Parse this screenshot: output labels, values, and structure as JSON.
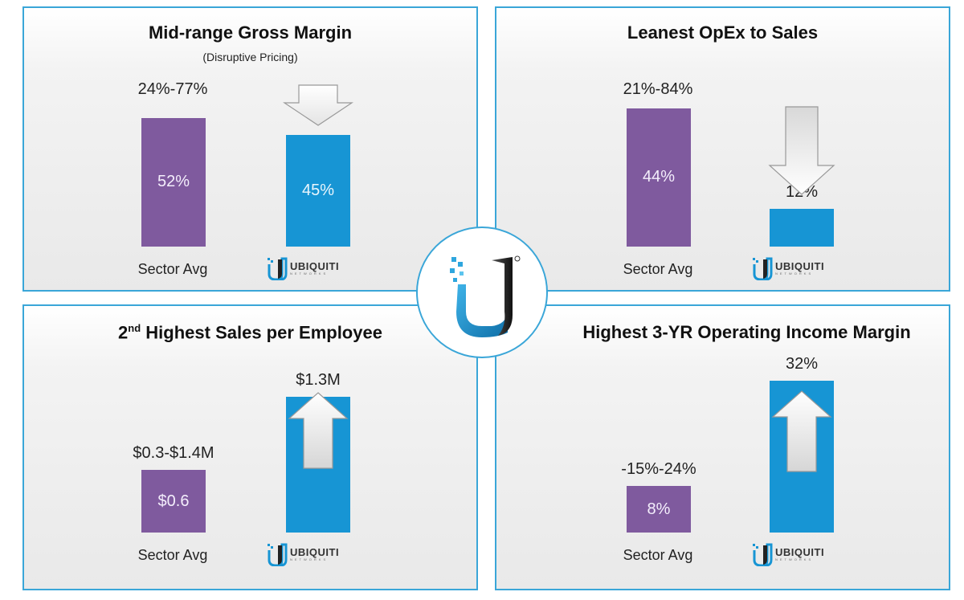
{
  "brand": {
    "logo_text": "UBIQUITI",
    "logo_subtext": "NETWORKS",
    "colors": {
      "sector": "#7f5a9e",
      "ubiquiti": "#1795d4",
      "border": "#3aa6d8"
    }
  },
  "panels": [
    {
      "title": "Mid-range Gross Margin",
      "subtitle": "(Disruptive Pricing)",
      "range_label": "24%-77%",
      "sector_value_label": "52%",
      "ubnt_value_label": "45%",
      "sector_category": "Sector Avg",
      "arrow": "down-arrow-icon"
    },
    {
      "title": "Leanest OpEx to Sales",
      "range_label": "21%-84%",
      "sector_value_label": "44%",
      "ubnt_value_label": "12%",
      "sector_category": "Sector Avg",
      "arrow": "down-arrow-icon"
    },
    {
      "title_prefix": "2",
      "title_sup": "nd",
      "title_rest": " Highest Sales per Employee",
      "range_label": "$0.3-$1.4M",
      "sector_value_label": "$0.6",
      "ubnt_value_label": "$1.3M",
      "sector_category": "Sector Avg",
      "arrow": "up-arrow-icon"
    },
    {
      "title": "Highest 3-YR Operating Income Margin",
      "range_label": "-15%-24%",
      "sector_value_label": "8%",
      "ubnt_value_label": "32%",
      "sector_category": "Sector Avg",
      "arrow": "up-arrow-icon"
    }
  ],
  "chart_data": [
    {
      "type": "bar",
      "title": "Mid-range Gross Margin",
      "subtitle": "(Disruptive Pricing)",
      "categories": [
        "Sector Avg",
        "UBIQUITI"
      ],
      "values": [
        52,
        45
      ],
      "sector_range": [
        24,
        77
      ],
      "unit": "%"
    },
    {
      "type": "bar",
      "title": "Leanest OpEx to Sales",
      "categories": [
        "Sector Avg",
        "UBIQUITI"
      ],
      "values": [
        44,
        12
      ],
      "sector_range": [
        21,
        84
      ],
      "unit": "%"
    },
    {
      "type": "bar",
      "title": "2nd Highest Sales per Employee",
      "categories": [
        "Sector Avg",
        "UBIQUITI"
      ],
      "values": [
        0.6,
        1.3
      ],
      "sector_range": [
        0.3,
        1.4
      ],
      "unit": "$M"
    },
    {
      "type": "bar",
      "title": "Highest 3-YR Operating Income Margin",
      "categories": [
        "Sector Avg",
        "UBIQUITI"
      ],
      "values": [
        8,
        32
      ],
      "sector_range": [
        -15,
        24
      ],
      "unit": "%"
    }
  ]
}
